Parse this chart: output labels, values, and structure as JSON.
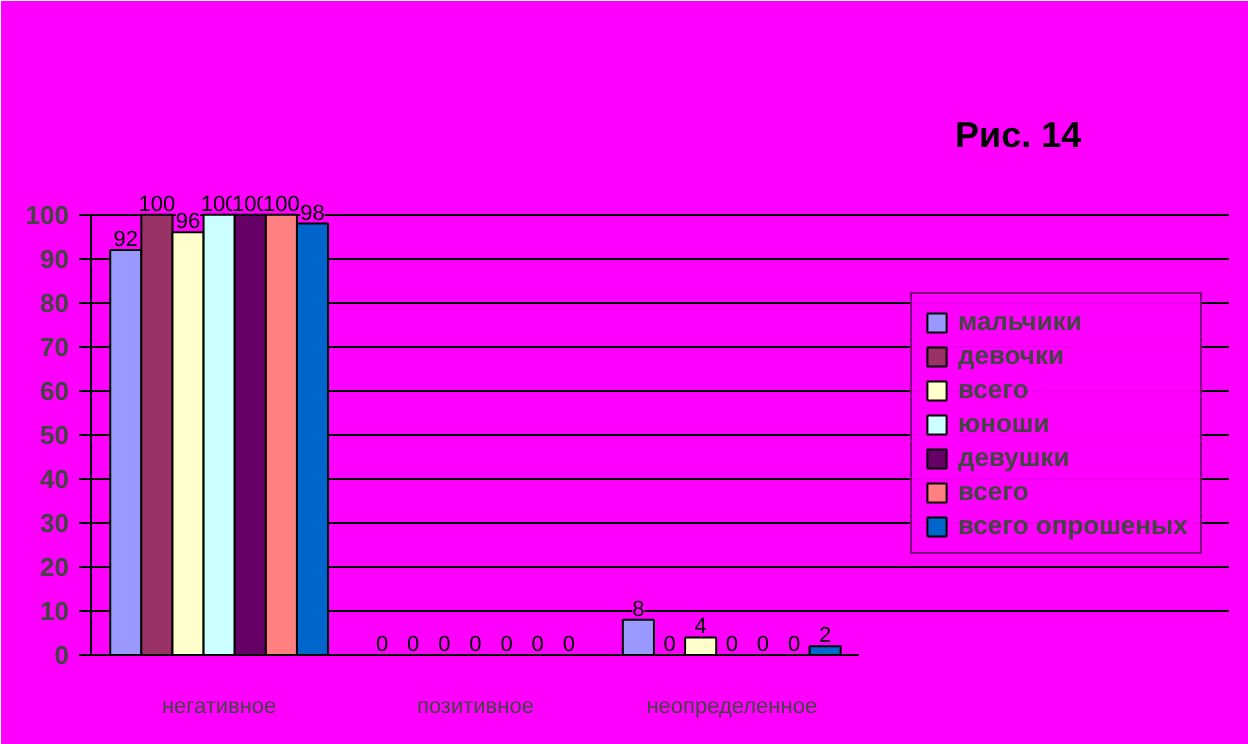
{
  "chart_data": {
    "type": "bar",
    "title": "Рис. 14",
    "categories": [
      "негативное",
      "позитивное",
      "неопределенное"
    ],
    "series": [
      {
        "name": "мальчики",
        "color": "#9999ff",
        "values": [
          92,
          0,
          8
        ]
      },
      {
        "name": "девочки",
        "color": "#993366",
        "values": [
          100,
          0,
          0
        ]
      },
      {
        "name": "всего",
        "color": "#ffffcc",
        "values": [
          96,
          0,
          4
        ]
      },
      {
        "name": "юноши",
        "color": "#ccffff",
        "values": [
          100,
          0,
          0
        ]
      },
      {
        "name": "девушки",
        "color": "#660066",
        "values": [
          100,
          0,
          0
        ]
      },
      {
        "name": "всего",
        "color": "#ff8080",
        "values": [
          100,
          0,
          0
        ]
      },
      {
        "name": "всего опрошеных",
        "color": "#0066cc",
        "values": [
          98,
          0,
          2
        ]
      }
    ],
    "ylim": [
      0,
      100
    ],
    "yticks": [
      0,
      10,
      20,
      30,
      40,
      50,
      60,
      70,
      80,
      90,
      100
    ],
    "grid": "y",
    "legend": "right",
    "data_labels": true
  }
}
